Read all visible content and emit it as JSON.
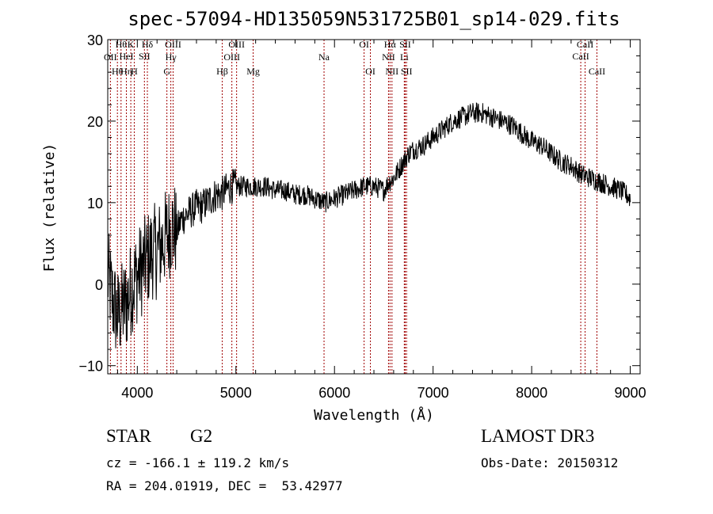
{
  "title": "spec-57094-HD135059N531725B01_sp14-029.fits",
  "info": {
    "object_class": "STAR",
    "subclass": "G2",
    "survey": "LAMOST DR3",
    "cz": "cz = -166.1 ± 119.2 km/s",
    "obs_date": "Obs-Date: 20150312",
    "coords": "RA = 204.01919, DEC =  53.42977"
  },
  "colors": {
    "spectrum": "#000000",
    "line_marker": "#a00000",
    "axis": "#000000"
  },
  "chart_data": {
    "type": "line",
    "title": "spec-57094-HD135059N531725B01_sp14-029.fits",
    "xlabel": "Wavelength (Å)",
    "ylabel": "Flux (relative)",
    "xlim": [
      3700,
      9100
    ],
    "ylim": [
      -11,
      30
    ],
    "xticks": [
      4000,
      5000,
      6000,
      7000,
      8000,
      9000
    ],
    "yticks": [
      -10,
      0,
      10,
      20,
      30
    ],
    "series": [
      {
        "name": "flux",
        "x": [
          3700,
          3750,
          3800,
          3850,
          3900,
          3950,
          4000,
          4050,
          4100,
          4150,
          4200,
          4250,
          4300,
          4350,
          4400,
          4450,
          4500,
          4550,
          4600,
          4650,
          4700,
          4750,
          4800,
          4850,
          4900,
          4950,
          5000,
          5100,
          5200,
          5300,
          5400,
          5500,
          5600,
          5700,
          5800,
          5900,
          6000,
          6100,
          6200,
          6300,
          6400,
          6500,
          6550,
          6600,
          6650,
          6700,
          6750,
          6800,
          6900,
          7000,
          7100,
          7200,
          7300,
          7400,
          7500,
          7600,
          7700,
          7800,
          7900,
          8000,
          8100,
          8200,
          8300,
          8400,
          8500,
          8600,
          8700,
          8800,
          8900,
          8960,
          9000
        ],
        "y": [
          1,
          -2,
          -4,
          -3,
          -2,
          0,
          1,
          2,
          3,
          4,
          4,
          5,
          6,
          7,
          6.5,
          8,
          8.5,
          9,
          9.5,
          9.5,
          10,
          10.5,
          11,
          11,
          11.5,
          12,
          12,
          12,
          12,
          12,
          11.5,
          11.5,
          11,
          11,
          10.5,
          10,
          10.5,
          11,
          11.5,
          12,
          12,
          11.5,
          12.5,
          13,
          14,
          15,
          16,
          16.5,
          17,
          18,
          19,
          20,
          20.5,
          21,
          21,
          20.5,
          20,
          19.5,
          18.5,
          17.5,
          17,
          16,
          15,
          14.5,
          13.5,
          13,
          12.5,
          12,
          11.5,
          11,
          10.5
        ]
      }
    ],
    "lines": [
      {
        "name": "OII",
        "wave": 3727,
        "row": 3
      },
      {
        "name": "Hθ",
        "wave": 3798,
        "row": 4
      },
      {
        "name": "Hθ",
        "wave": 3835,
        "row": 1
      },
      {
        "name": "Hη",
        "wave": 3889,
        "row": 4
      },
      {
        "name": "HeI",
        "wave": 3889,
        "row": 2
      },
      {
        "name": "K",
        "wave": 3934,
        "row": 1
      },
      {
        "name": "H",
        "wave": 3969,
        "row": 4
      },
      {
        "name": "SII",
        "wave": 4072,
        "row": 2
      },
      {
        "name": "Hδ",
        "wave": 4102,
        "row": 1
      },
      {
        "name": "G",
        "wave": 4300,
        "row": 4
      },
      {
        "name": "Hγ",
        "wave": 4340,
        "row": 3
      },
      {
        "name": "OIII",
        "wave": 4363,
        "row": 1
      },
      {
        "name": "Hβ",
        "wave": 4861,
        "row": 4
      },
      {
        "name": "OIII",
        "wave": 4959,
        "row": 3
      },
      {
        "name": "OIII",
        "wave": 5007,
        "row": 1
      },
      {
        "name": "Mg",
        "wave": 5175,
        "row": 4
      },
      {
        "name": "Na",
        "wave": 5894,
        "row": 3
      },
      {
        "name": "OI",
        "wave": 6300,
        "row": 1
      },
      {
        "name": "OI",
        "wave": 6364,
        "row": 4
      },
      {
        "name": "NII",
        "wave": 6548,
        "row": 3
      },
      {
        "name": "Hα",
        "wave": 6563,
        "row": 1
      },
      {
        "name": "NII",
        "wave": 6583,
        "row": 4
      },
      {
        "name": "Li",
        "wave": 6708,
        "row": 3
      },
      {
        "name": "SII",
        "wave": 6717,
        "row": 1
      },
      {
        "name": "SII",
        "wave": 6731,
        "row": 4
      },
      {
        "name": "CaII",
        "wave": 8498,
        "row": 2
      },
      {
        "name": "CaII",
        "wave": 8542,
        "row": 1
      },
      {
        "name": "CaII",
        "wave": 8662,
        "row": 4
      }
    ]
  }
}
